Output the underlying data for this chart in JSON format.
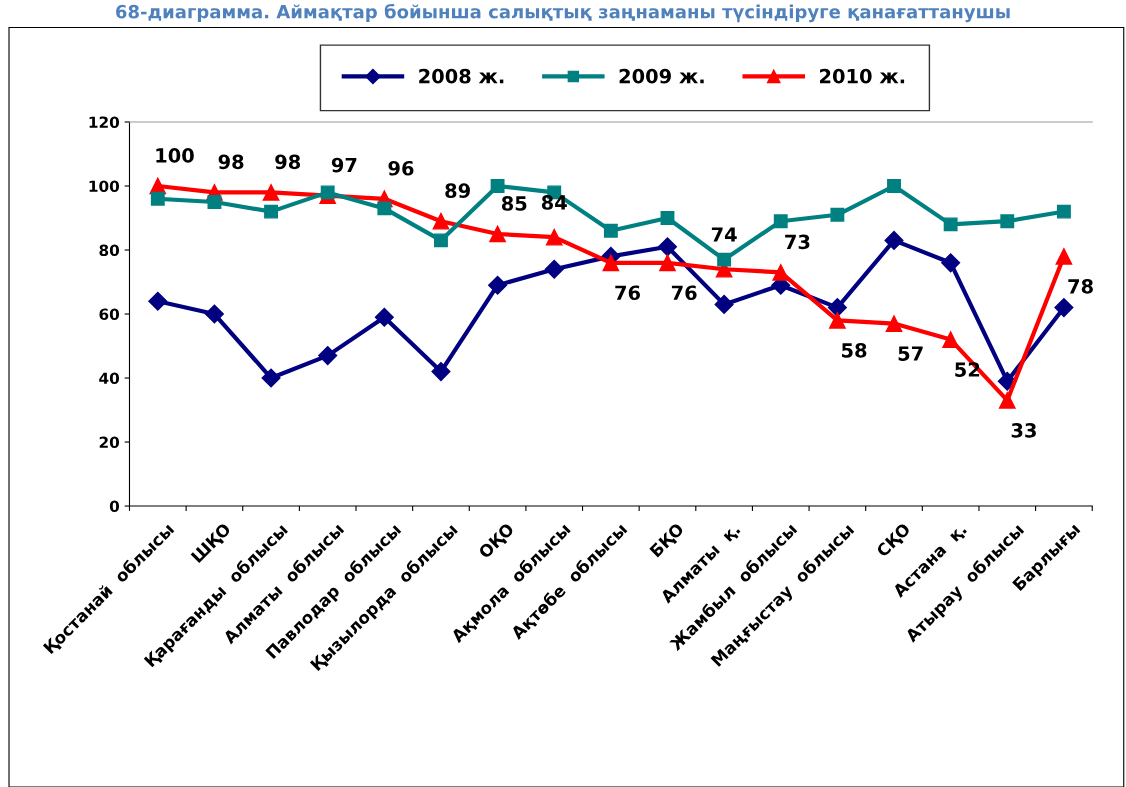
{
  "chart_data": {
    "type": "line",
    "title": "68-диаграмма. Аймақтар бойынша салықтық заңнаманы түсіндіруге қанағаттанушы",
    "categories": [
      "Қостанай  облысы",
      "ШҚО",
      "Қарағанды  облысы",
      "Алматы  облысы",
      "Павлодар  облысы",
      "Қызылорда  облысы",
      "ОҚО",
      "Ақмола  облысы",
      "Ақтөбе  облысы",
      "БҚО",
      "Алматы  қ.",
      "Жамбыл  облысы",
      "Маңғыстау  облысы",
      "СҚО",
      "Астана  қ.",
      "Атырау  облысы",
      "Барлығы"
    ],
    "series": [
      {
        "name": "2008 ж.",
        "color": "#000080",
        "marker": "diamond",
        "values": [
          64,
          60,
          40,
          47,
          59,
          42,
          69,
          74,
          78,
          81,
          63,
          69,
          62,
          83,
          76,
          39,
          62
        ]
      },
      {
        "name": "2009 ж.",
        "color": "#008080",
        "marker": "square",
        "values": [
          96,
          95,
          92,
          98,
          93,
          83,
          100,
          98,
          86,
          90,
          77,
          89,
          91,
          100,
          88,
          89,
          92
        ]
      },
      {
        "name": "2010 ж.",
        "color": "#ff0000",
        "marker": "triangle",
        "data_labels": true,
        "values": [
          100,
          98,
          98,
          97,
          96,
          89,
          85,
          84,
          76,
          76,
          74,
          73,
          58,
          57,
          52,
          33,
          78
        ]
      }
    ],
    "ylim": [
      0,
      120
    ],
    "yticks": [
      0,
      20,
      40,
      60,
      80,
      100,
      120
    ],
    "grid": false,
    "legend": "top"
  }
}
